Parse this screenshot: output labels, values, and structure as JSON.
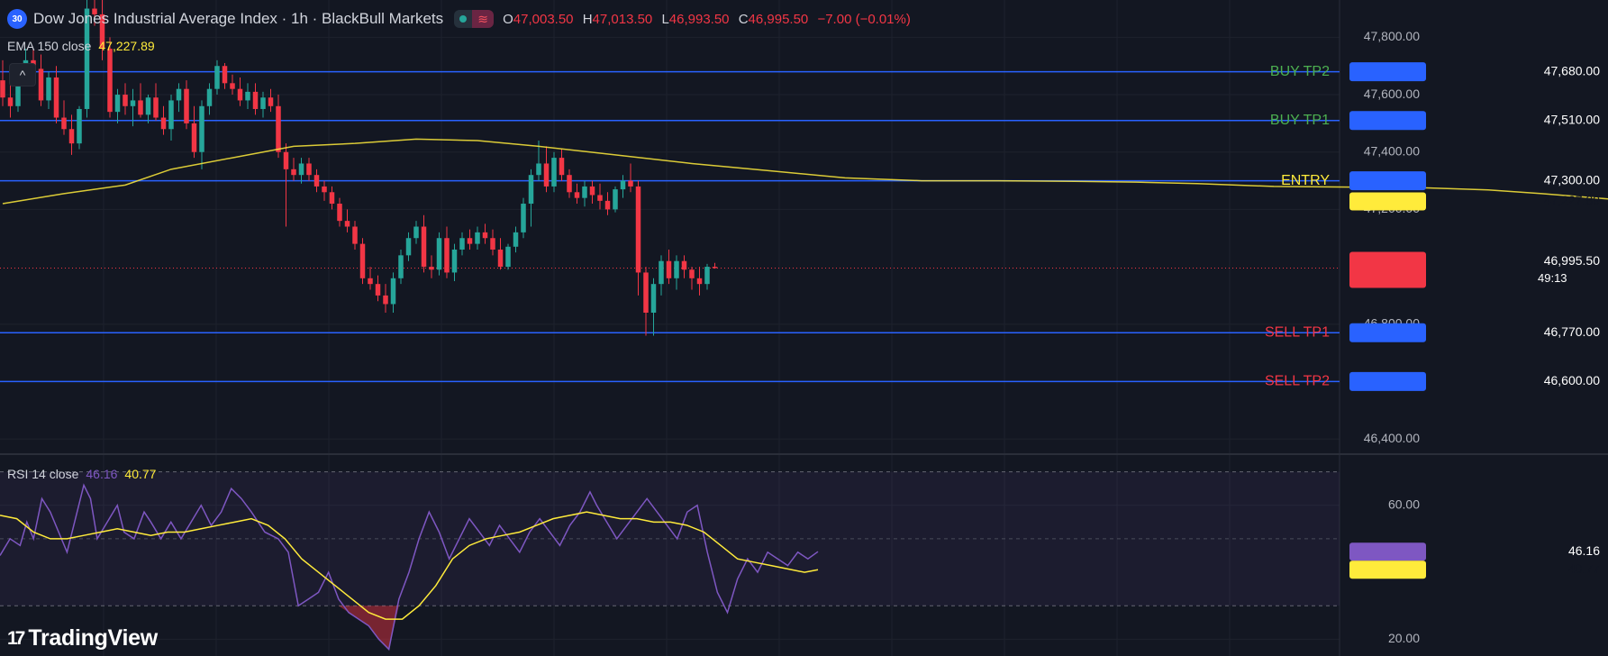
{
  "header": {
    "symbol_badge": "30",
    "title": "Dow Jones Industrial Average Index · 1h · BlackBull Markets",
    "live_icon": "live-dot-icon",
    "wave_icon": "wave-icon",
    "wave_glyph": "≋",
    "ohlc": {
      "o_label": "O",
      "o": "47,003.50",
      "h_label": "H",
      "h": "47,013.50",
      "l_label": "L",
      "l": "46,993.50",
      "c_label": "C",
      "c": "46,995.50",
      "change": "−7.00 (−0.01%)"
    }
  },
  "ema_label": {
    "name": "EMA 150 close",
    "value": "47,227.89"
  },
  "rsi_label": {
    "name": "RSI 14 close",
    "value": "46.16",
    "ma_value": "40.77"
  },
  "collapse_glyph": "^",
  "logo": {
    "text": "TradingView",
    "icon_glyph": "17"
  },
  "colors": {
    "bg": "#131722",
    "grid": "#1e222d",
    "up": "#26a69a",
    "down": "#f23645",
    "level": "#2962ff",
    "ema": "#ffeb3b",
    "rsi": "#7e57c2",
    "rsi_ma": "#ffeb3b",
    "buy": "#4caf50",
    "sell": "#f23645",
    "entry": "#ffeb3b"
  },
  "chart_data": [
    {
      "type": "candlestick",
      "timeframe": "1h",
      "ylim": [
        46350,
        47930
      ],
      "y_ticks": [
        {
          "value": 47800,
          "label": "47,800.00"
        },
        {
          "value": 47600,
          "label": "47,600.00"
        },
        {
          "value": 47400,
          "label": "47,400.00"
        },
        {
          "value": 47200,
          "label": "47,200.00"
        },
        {
          "value": 46800,
          "label": "46,800.00"
        },
        {
          "value": 46400,
          "label": "46,400.00"
        }
      ],
      "ohlc": [
        [
          47650,
          47720,
          47560,
          47590
        ],
        [
          47590,
          47640,
          47520,
          47560
        ],
        [
          47560,
          47700,
          47540,
          47680
        ],
        [
          47680,
          47760,
          47650,
          47720
        ],
        [
          47720,
          47760,
          47640,
          47690
        ],
        [
          47690,
          47740,
          47560,
          47580
        ],
        [
          47580,
          47680,
          47550,
          47660
        ],
        [
          47660,
          47700,
          47500,
          47520
        ],
        [
          47520,
          47580,
          47460,
          47480
        ],
        [
          47480,
          47530,
          47390,
          47430
        ],
        [
          47430,
          47560,
          47410,
          47550
        ],
        [
          47550,
          47950,
          47520,
          47900
        ],
        [
          47900,
          47970,
          47840,
          47880
        ],
        [
          47880,
          47930,
          47720,
          47760
        ],
        [
          47760,
          47800,
          47520,
          47540
        ],
        [
          47540,
          47620,
          47500,
          47600
        ],
        [
          47600,
          47640,
          47530,
          47560
        ],
        [
          47560,
          47620,
          47490,
          47580
        ],
        [
          47580,
          47640,
          47520,
          47530
        ],
        [
          47530,
          47600,
          47500,
          47590
        ],
        [
          47590,
          47640,
          47510,
          47520
        ],
        [
          47520,
          47560,
          47460,
          47480
        ],
        [
          47480,
          47600,
          47440,
          47580
        ],
        [
          47580,
          47640,
          47540,
          47620
        ],
        [
          47620,
          47650,
          47480,
          47500
        ],
        [
          47500,
          47560,
          47380,
          47400
        ],
        [
          47400,
          47580,
          47340,
          47560
        ],
        [
          47560,
          47640,
          47530,
          47620
        ],
        [
          47620,
          47720,
          47600,
          47700
        ],
        [
          47700,
          47710,
          47620,
          47640
        ],
        [
          47640,
          47670,
          47600,
          47620
        ],
        [
          47620,
          47660,
          47560,
          47580
        ],
        [
          47580,
          47640,
          47550,
          47610
        ],
        [
          47610,
          47640,
          47530,
          47550
        ],
        [
          47550,
          47610,
          47520,
          47590
        ],
        [
          47590,
          47620,
          47540,
          47560
        ],
        [
          47560,
          47600,
          47380,
          47400
        ],
        [
          47400,
          47430,
          47140,
          47340
        ],
        [
          47340,
          47380,
          47300,
          47320
        ],
        [
          47320,
          47380,
          47290,
          47360
        ],
        [
          47360,
          47380,
          47300,
          47320
        ],
        [
          47320,
          47340,
          47260,
          47280
        ],
        [
          47280,
          47300,
          47230,
          47260
        ],
        [
          47260,
          47280,
          47200,
          47220
        ],
        [
          47220,
          47240,
          47140,
          47160
        ],
        [
          47160,
          47200,
          47120,
          47140
        ],
        [
          47140,
          47160,
          47060,
          47080
        ],
        [
          47080,
          47100,
          46940,
          46960
        ],
        [
          46960,
          47000,
          46920,
          46940
        ],
        [
          46940,
          46970,
          46880,
          46900
        ],
        [
          46900,
          46940,
          46840,
          46870
        ],
        [
          46870,
          46980,
          46840,
          46960
        ],
        [
          46960,
          47060,
          46940,
          47040
        ],
        [
          47040,
          47120,
          47020,
          47100
        ],
        [
          47100,
          47160,
          47080,
          47140
        ],
        [
          47140,
          47180,
          46980,
          47000
        ],
        [
          47000,
          47040,
          46960,
          46990
        ],
        [
          46990,
          47120,
          46970,
          47100
        ],
        [
          47100,
          47140,
          46960,
          46980
        ],
        [
          46980,
          47080,
          46950,
          47060
        ],
        [
          47060,
          47120,
          47040,
          47100
        ],
        [
          47100,
          47130,
          47060,
          47080
        ],
        [
          47080,
          47140,
          47060,
          47120
        ],
        [
          47120,
          47150,
          47080,
          47100
        ],
        [
          47100,
          47130,
          47040,
          47060
        ],
        [
          47060,
          47100,
          46990,
          47000
        ],
        [
          47000,
          47080,
          46990,
          47070
        ],
        [
          47070,
          47140,
          47050,
          47120
        ],
        [
          47120,
          47240,
          47100,
          47220
        ],
        [
          47220,
          47340,
          47140,
          47320
        ],
        [
          47320,
          47440,
          47300,
          47360
        ],
        [
          47360,
          47420,
          47260,
          47280
        ],
        [
          47280,
          47400,
          47260,
          47380
        ],
        [
          47380,
          47410,
          47300,
          47320
        ],
        [
          47320,
          47340,
          47240,
          47260
        ],
        [
          47260,
          47290,
          47220,
          47240
        ],
        [
          47240,
          47300,
          47210,
          47280
        ],
        [
          47280,
          47300,
          47220,
          47250
        ],
        [
          47250,
          47290,
          47200,
          47230
        ],
        [
          47230,
          47260,
          47180,
          47200
        ],
        [
          47200,
          47280,
          47190,
          47270
        ],
        [
          47270,
          47320,
          47240,
          47300
        ],
        [
          47300,
          47360,
          47260,
          47280
        ],
        [
          47280,
          47300,
          46900,
          46980
        ],
        [
          46980,
          47000,
          46760,
          46840
        ],
        [
          46840,
          46960,
          46760,
          46940
        ],
        [
          46940,
          47040,
          46900,
          47020
        ],
        [
          47020,
          47060,
          46940,
          46960
        ],
        [
          46960,
          47040,
          46920,
          47020
        ],
        [
          47020,
          47040,
          46960,
          46990
        ],
        [
          46990,
          47000,
          46920,
          46960
        ],
        [
          46960,
          47000,
          46900,
          46940
        ],
        [
          46940,
          47010,
          46920,
          47000
        ],
        [
          47000,
          47013.5,
          46993.5,
          46995.5
        ]
      ],
      "ema150": [
        [
          0,
          47220
        ],
        [
          8,
          47255
        ],
        [
          16,
          47285
        ],
        [
          22,
          47340
        ],
        [
          30,
          47380
        ],
        [
          38,
          47420
        ],
        [
          46,
          47430
        ],
        [
          54,
          47445
        ],
        [
          62,
          47440
        ],
        [
          70,
          47420
        ],
        [
          80,
          47390
        ],
        [
          90,
          47360
        ],
        [
          100,
          47335
        ],
        [
          110,
          47310
        ],
        [
          120,
          47300
        ],
        [
          130,
          47300
        ],
        [
          140,
          47298
        ],
        [
          148,
          47295
        ],
        [
          156,
          47290
        ],
        [
          166,
          47280
        ],
        [
          176,
          47278
        ],
        [
          186,
          47275
        ],
        [
          194,
          47268
        ],
        [
          201,
          47255
        ],
        [
          208,
          47240
        ],
        [
          214,
          47228
        ]
      ],
      "levels": [
        {
          "label": "BUY TP2",
          "value": 47680,
          "value_label": "47,680.00",
          "color": "#4caf50"
        },
        {
          "label": "BUY TP1",
          "value": 47510,
          "value_label": "47,510.00",
          "color": "#4caf50"
        },
        {
          "label": "ENTRY",
          "value": 47300,
          "value_label": "47,300.00",
          "color": "#ffeb3b"
        },
        {
          "label": "SELL TP1",
          "value": 46770,
          "value_label": "46,770.00",
          "color": "#f23645"
        },
        {
          "label": "SELL TP2",
          "value": 46600,
          "value_label": "46,600.00",
          "color": "#f23645"
        }
      ],
      "ema_tag": {
        "value": 47227.89,
        "label": "47,227.89"
      },
      "price_tag": {
        "value": 46995.5,
        "label": "46,995.50",
        "countdown": "49:13"
      }
    },
    {
      "type": "line",
      "ylim": [
        15,
        75
      ],
      "y_ticks": [
        {
          "value": 60,
          "label": "60.00"
        },
        {
          "value": 20,
          "label": "20.00"
        }
      ],
      "band": [
        30,
        70
      ],
      "midline": 50,
      "rsi": [
        [
          0,
          45
        ],
        [
          6,
          50
        ],
        [
          12,
          48
        ],
        [
          16,
          55
        ],
        [
          20,
          50
        ],
        [
          25,
          62
        ],
        [
          30,
          58
        ],
        [
          35,
          52
        ],
        [
          40,
          46
        ],
        [
          46,
          58
        ],
        [
          50,
          66
        ],
        [
          54,
          62
        ],
        [
          58,
          50
        ],
        [
          64,
          55
        ],
        [
          70,
          60
        ],
        [
          74,
          52
        ],
        [
          80,
          50
        ],
        [
          86,
          58
        ],
        [
          90,
          55
        ],
        [
          96,
          50
        ],
        [
          102,
          55
        ],
        [
          108,
          50
        ],
        [
          114,
          55
        ],
        [
          120,
          60
        ],
        [
          126,
          54
        ],
        [
          132,
          58
        ],
        [
          138,
          65
        ],
        [
          144,
          62
        ],
        [
          150,
          58
        ],
        [
          158,
          52
        ],
        [
          166,
          50
        ],
        [
          172,
          46
        ],
        [
          178,
          30
        ],
        [
          184,
          32
        ],
        [
          190,
          34
        ],
        [
          196,
          40
        ],
        [
          202,
          32
        ],
        [
          208,
          28
        ],
        [
          214,
          26
        ],
        [
          220,
          24
        ],
        [
          226,
          20
        ],
        [
          232,
          17
        ],
        [
          238,
          32
        ],
        [
          244,
          40
        ],
        [
          250,
          50
        ],
        [
          256,
          58
        ],
        [
          262,
          52
        ],
        [
          268,
          44
        ],
        [
          274,
          50
        ],
        [
          280,
          56
        ],
        [
          286,
          52
        ],
        [
          292,
          48
        ],
        [
          298,
          54
        ],
        [
          304,
          50
        ],
        [
          310,
          46
        ],
        [
          316,
          52
        ],
        [
          322,
          56
        ],
        [
          328,
          52
        ],
        [
          334,
          48
        ],
        [
          340,
          54
        ],
        [
          346,
          58
        ],
        [
          352,
          64
        ],
        [
          356,
          60
        ],
        [
          362,
          55
        ],
        [
          368,
          50
        ],
        [
          374,
          54
        ],
        [
          380,
          58
        ],
        [
          386,
          62
        ],
        [
          392,
          58
        ],
        [
          398,
          54
        ],
        [
          404,
          50
        ],
        [
          410,
          58
        ],
        [
          416,
          60
        ],
        [
          422,
          46
        ],
        [
          428,
          34
        ],
        [
          434,
          28
        ],
        [
          440,
          38
        ],
        [
          446,
          44
        ],
        [
          452,
          40
        ],
        [
          458,
          46
        ],
        [
          464,
          44
        ],
        [
          470,
          42
        ],
        [
          476,
          46
        ],
        [
          482,
          44
        ],
        [
          488,
          46.16
        ]
      ],
      "rsi_ma": [
        [
          0,
          57
        ],
        [
          10,
          56
        ],
        [
          20,
          52
        ],
        [
          30,
          50
        ],
        [
          40,
          50
        ],
        [
          50,
          51
        ],
        [
          60,
          52
        ],
        [
          70,
          53
        ],
        [
          80,
          52
        ],
        [
          90,
          51
        ],
        [
          100,
          52
        ],
        [
          110,
          52
        ],
        [
          120,
          53
        ],
        [
          130,
          54
        ],
        [
          140,
          55
        ],
        [
          150,
          56
        ],
        [
          160,
          54
        ],
        [
          170,
          50
        ],
        [
          180,
          44
        ],
        [
          190,
          40
        ],
        [
          200,
          36
        ],
        [
          210,
          32
        ],
        [
          220,
          28
        ],
        [
          230,
          26
        ],
        [
          240,
          26
        ],
        [
          250,
          30
        ],
        [
          260,
          36
        ],
        [
          270,
          44
        ],
        [
          280,
          48
        ],
        [
          290,
          50
        ],
        [
          300,
          51
        ],
        [
          310,
          52
        ],
        [
          320,
          54
        ],
        [
          330,
          56
        ],
        [
          340,
          57
        ],
        [
          350,
          58
        ],
        [
          360,
          57
        ],
        [
          370,
          56
        ],
        [
          380,
          56
        ],
        [
          390,
          55
        ],
        [
          400,
          55
        ],
        [
          410,
          54
        ],
        [
          420,
          52
        ],
        [
          430,
          48
        ],
        [
          440,
          44
        ],
        [
          450,
          43
        ],
        [
          460,
          42
        ],
        [
          470,
          41
        ],
        [
          480,
          40
        ],
        [
          488,
          40.77
        ]
      ],
      "rsi_tag": {
        "value": 46.16,
        "label": "46.16"
      },
      "ma_tag": {
        "value": 40.77,
        "label": "40.77"
      }
    }
  ]
}
